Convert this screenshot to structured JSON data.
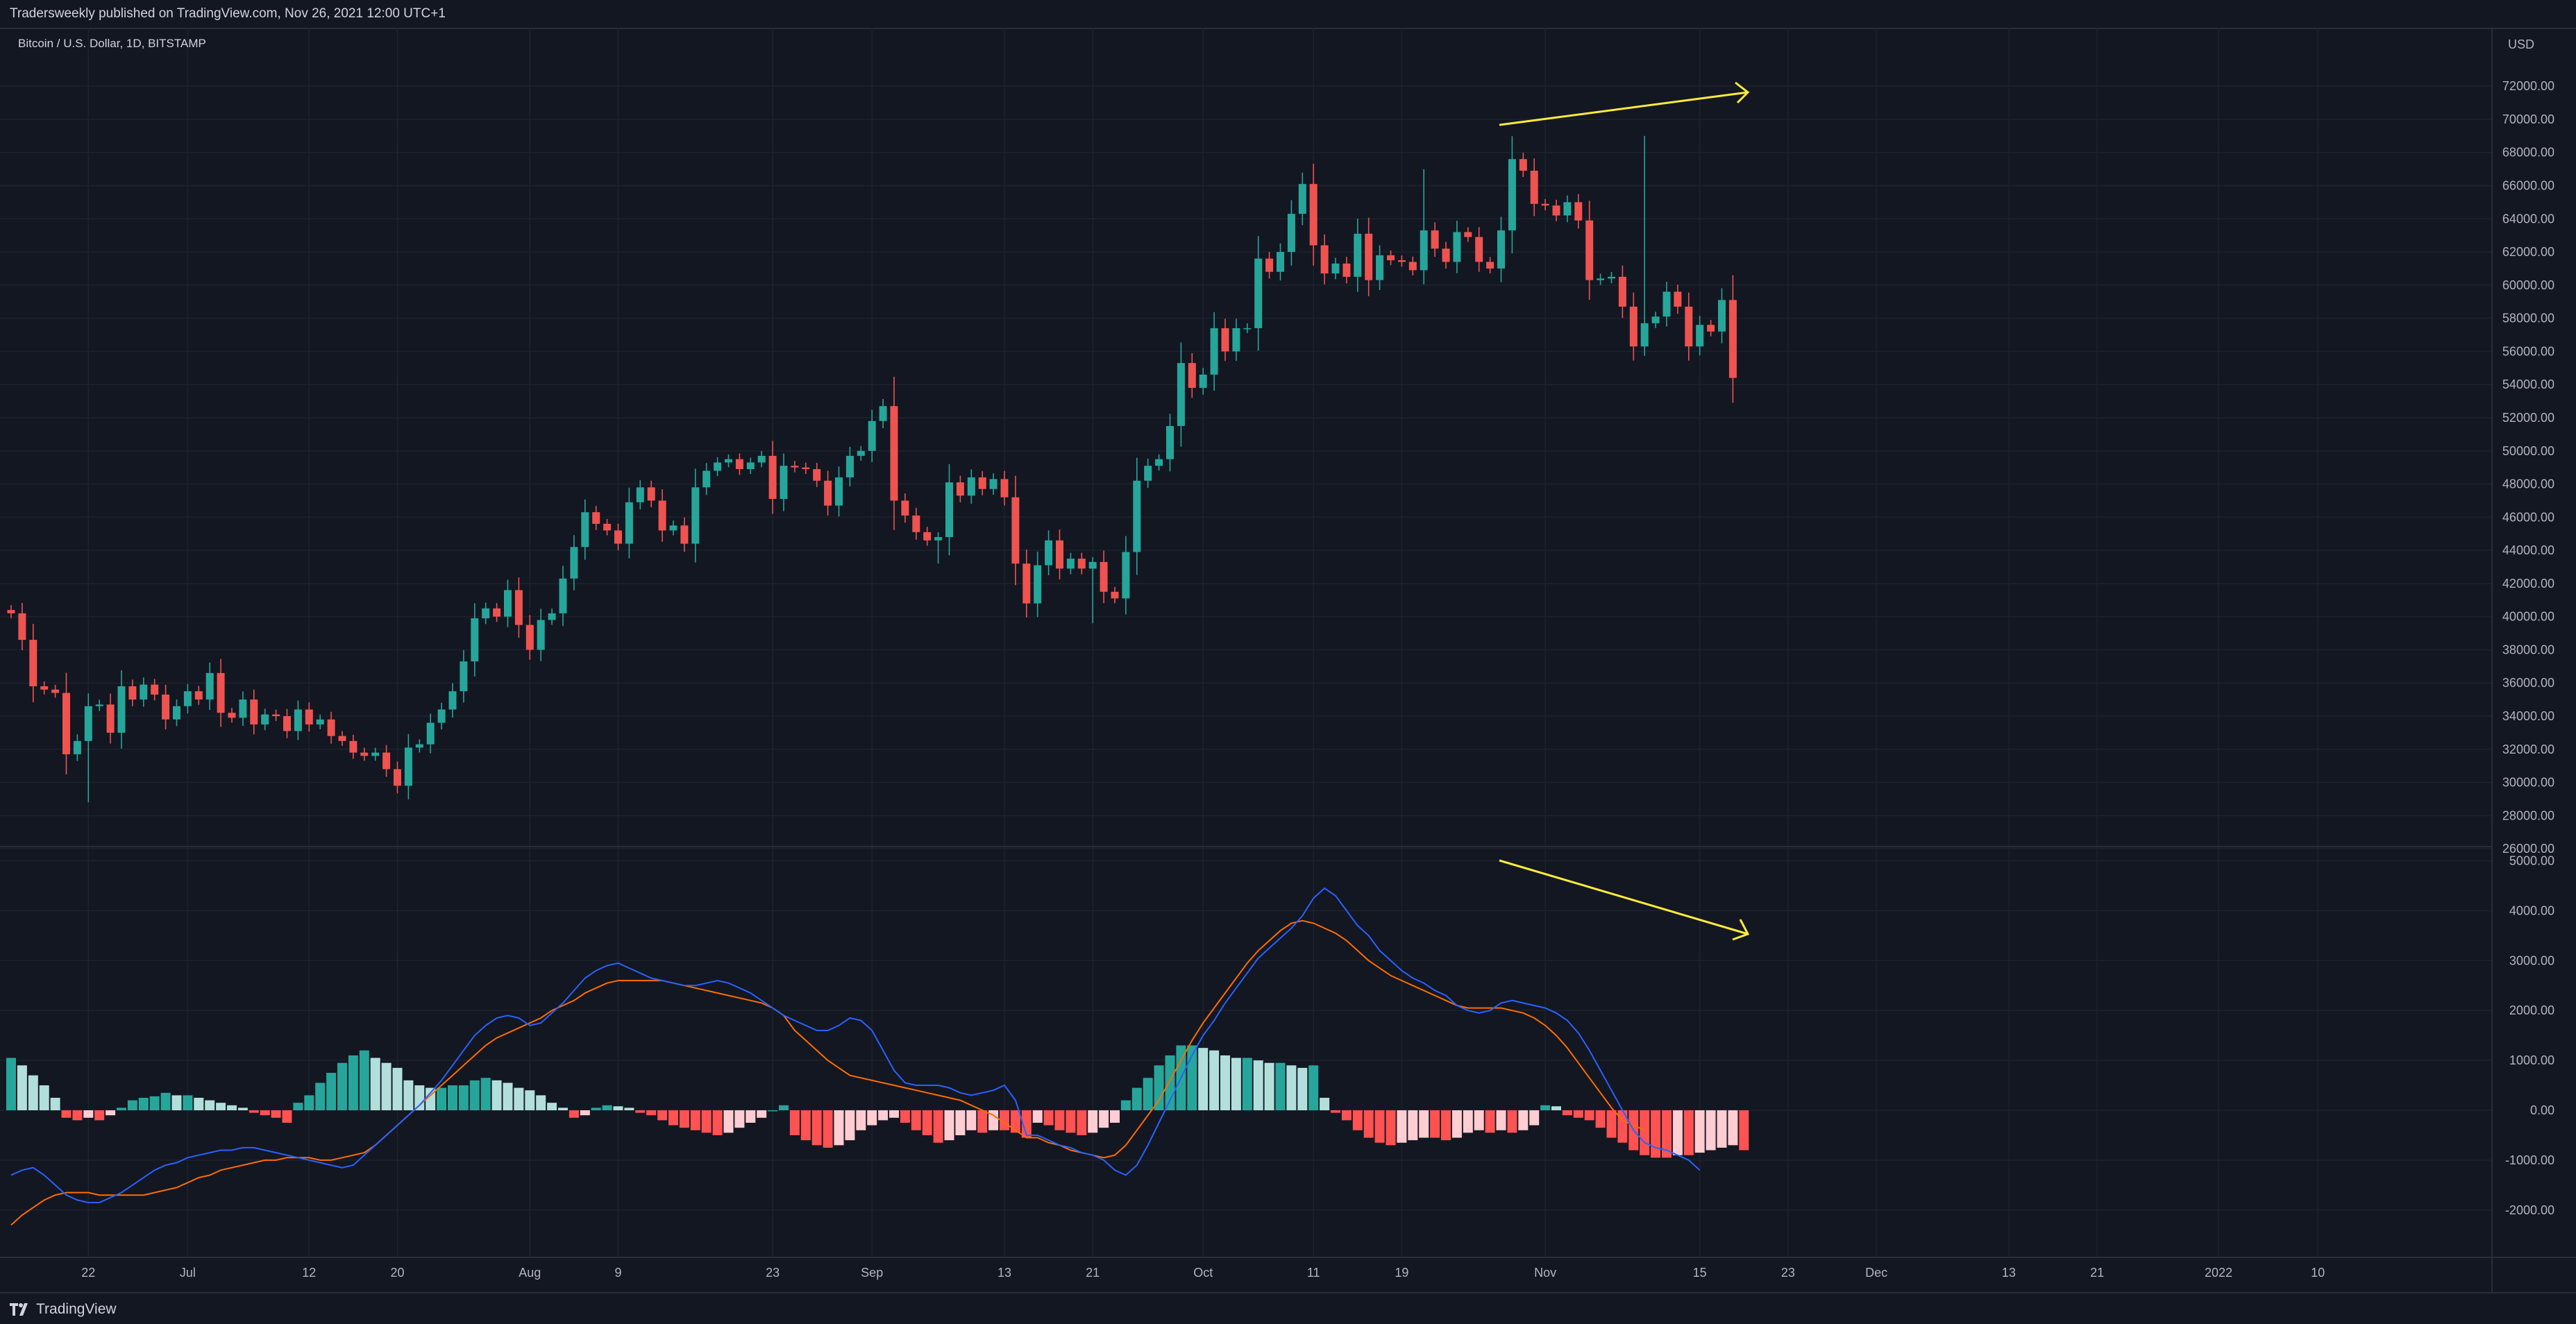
{
  "header": {
    "publish_text": "Tradersweekly published on TradingView.com, Nov 26, 2021 12:00 UTC+1"
  },
  "footer": {
    "brand": "TradingView"
  },
  "colors": {
    "background": "#131722",
    "grid": "#1e222d",
    "up": "#26a69a",
    "down": "#ef5350",
    "hist_up_strong": "#26a69a",
    "hist_up_weak": "#b2dfdb",
    "hist_down_strong": "#ff5252",
    "hist_down_weak": "#ffcdd2",
    "macd_line": "#2962ff",
    "signal_line": "#ff6d00",
    "annotation": "#ffeb3b"
  },
  "chart_data": [
    {
      "type": "candlestick",
      "title": "Bitcoin / U.S. Dollar, 1D, BITSTAMP",
      "ylabel": "USD",
      "ylim": [
        25000,
        72500
      ],
      "y_ticks": [
        "72000.00",
        "70000.00",
        "68000.00",
        "66000.00",
        "64000.00",
        "62000.00",
        "60000.00",
        "58000.00",
        "56000.00",
        "54000.00",
        "52000.00",
        "50000.00",
        "48000.00",
        "46000.00",
        "44000.00",
        "42000.00",
        "40000.00",
        "38000.00",
        "36000.00",
        "34000.00",
        "32000.00",
        "30000.00",
        "28000.00",
        "26000.00"
      ],
      "x_start": "2021-06-15",
      "x_ticks": [
        {
          "date": "2021-06-22",
          "label": "22"
        },
        {
          "date": "2021-07-01",
          "label": "Jul"
        },
        {
          "date": "2021-07-12",
          "label": "12"
        },
        {
          "date": "2021-07-20",
          "label": "20"
        },
        {
          "date": "2021-08-01",
          "label": "Aug"
        },
        {
          "date": "2021-08-09",
          "label": "9"
        },
        {
          "date": "2021-08-23",
          "label": "23"
        },
        {
          "date": "2021-09-01",
          "label": "Sep"
        },
        {
          "date": "2021-09-13",
          "label": "13"
        },
        {
          "date": "2021-09-21",
          "label": "21"
        },
        {
          "date": "2021-10-01",
          "label": "Oct"
        },
        {
          "date": "2021-10-11",
          "label": "11"
        },
        {
          "date": "2021-10-19",
          "label": "19"
        },
        {
          "date": "2021-11-01",
          "label": "Nov"
        },
        {
          "date": "2021-11-15",
          "label": "15"
        },
        {
          "date": "2021-11-23",
          "label": "23"
        },
        {
          "date": "2021-12-01",
          "label": "Dec"
        },
        {
          "date": "2021-12-13",
          "label": "13"
        },
        {
          "date": "2021-12-21",
          "label": "21"
        },
        {
          "date": "2022-01-01",
          "label": "2022"
        },
        {
          "date": "2022-01-10",
          "label": "10"
        }
      ],
      "close_start": 40400,
      "closes": [
        40200,
        38600,
        35800,
        35600,
        35400,
        31700,
        32500,
        34600,
        34700,
        33000,
        35800,
        35000,
        35900,
        35300,
        33800,
        34600,
        35500,
        35000,
        36600,
        34200,
        33900,
        35000,
        33500,
        34100,
        34000,
        33100,
        34400,
        33500,
        33800,
        32800,
        32500,
        31800,
        31600,
        31800,
        30800,
        29800,
        32100,
        32300,
        33600,
        34400,
        35500,
        37300,
        39900,
        40500,
        40000,
        41600,
        39500,
        38000,
        39800,
        40200,
        42300,
        44200,
        46300,
        45600,
        45200,
        44400,
        46900,
        47800,
        47000,
        45200,
        45500,
        44400,
        47800,
        48800,
        49300,
        49500,
        48900,
        49300,
        49700,
        47100,
        49100,
        49000,
        48900,
        48200,
        46700,
        48400,
        49700,
        50000,
        51800,
        52700,
        47000,
        46100,
        45100,
        44600,
        44800,
        48100,
        47300,
        48400,
        47700,
        48300,
        47200,
        43200,
        40800,
        43100,
        44600,
        42900,
        43500,
        42900,
        43300,
        41500,
        41100,
        43900,
        48200,
        49100,
        49500,
        51500,
        55300,
        53800,
        54600,
        57400,
        56000,
        57400,
        57400,
        61600,
        60800,
        62000,
        64300,
        66100,
        62400,
        60700,
        61300,
        60500,
        63100,
        60300,
        61800,
        61500,
        61400,
        60900,
        63300,
        62200,
        61400,
        63200,
        62900,
        61400,
        61000,
        63300,
        67600,
        66900,
        64900,
        64800,
        64200,
        65000,
        63900,
        60300,
        60400,
        60500,
        58700,
        56300,
        57700,
        58100,
        59600,
        58700,
        56300,
        57600,
        57200,
        59100,
        54400
      ],
      "wick_extremes": [
        {
          "date": "2021-06-22",
          "low": 28800
        },
        {
          "date": "2021-09-07",
          "low": 43200
        },
        {
          "date": "2021-09-21",
          "low": 39600
        },
        {
          "date": "2021-10-21",
          "high": 67000
        },
        {
          "date": "2021-11-10",
          "high": 69000
        },
        {
          "date": "2021-11-26",
          "low": 53800
        }
      ]
    },
    {
      "type": "macd",
      "ylim": [
        -2750,
        5300
      ],
      "y_ticks": [
        "5000.00",
        "4000.00",
        "3000.00",
        "2000.00",
        "1000.00",
        "0.00",
        "-1000.00",
        "-2000.00"
      ],
      "histogram": [
        1050,
        900,
        700,
        500,
        250,
        -150,
        -200,
        -150,
        -200,
        -100,
        50,
        200,
        250,
        280,
        350,
        300,
        300,
        250,
        200,
        150,
        100,
        50,
        -50,
        -100,
        -150,
        -250,
        150,
        300,
        550,
        750,
        950,
        1100,
        1200,
        1050,
        950,
        850,
        600,
        500,
        450,
        450,
        500,
        500,
        600,
        650,
        600,
        550,
        450,
        400,
        300,
        150,
        50,
        -150,
        -100,
        50,
        100,
        80,
        50,
        -50,
        -100,
        -200,
        -300,
        -350,
        -400,
        -450,
        -500,
        -450,
        -350,
        -250,
        -150,
        0,
        100,
        -500,
        -600,
        -700,
        -750,
        -700,
        -600,
        -400,
        -300,
        -200,
        -150,
        -250,
        -400,
        -500,
        -650,
        -600,
        -500,
        -400,
        -450,
        -400,
        -400,
        -450,
        -550,
        -250,
        -300,
        -400,
        -450,
        -500,
        -450,
        -350,
        -250,
        200,
        450,
        650,
        900,
        1100,
        1300,
        1300,
        1250,
        1200,
        1100,
        1050,
        1050,
        1000,
        950,
        950,
        900,
        850,
        900,
        250,
        -50,
        -200,
        -400,
        -550,
        -650,
        -700,
        -650,
        -600,
        -550,
        -550,
        -600,
        -550,
        -450,
        -400,
        -450,
        -400,
        -450,
        -400,
        -300,
        100,
        80,
        -100,
        -150,
        -200,
        -350,
        -550,
        -650,
        -800,
        -900,
        -950,
        -950,
        -900,
        -900,
        -850,
        -800,
        -750,
        -700,
        -800
      ],
      "macd": [
        -1300,
        -1200,
        -1150,
        -1300,
        -1500,
        -1700,
        -1800,
        -1850,
        -1850,
        -1750,
        -1650,
        -1500,
        -1350,
        -1200,
        -1100,
        -1050,
        -950,
        -900,
        -850,
        -800,
        -800,
        -750,
        -750,
        -800,
        -850,
        -900,
        -950,
        -1000,
        -1050,
        -1100,
        -1150,
        -1100,
        -900,
        -700,
        -500,
        -300,
        -100,
        100,
        350,
        600,
        900,
        1200,
        1500,
        1700,
        1850,
        1900,
        1850,
        1700,
        1750,
        1950,
        2150,
        2400,
        2650,
        2800,
        2900,
        2950,
        2850,
        2750,
        2650,
        2600,
        2550,
        2500,
        2500,
        2550,
        2600,
        2550,
        2450,
        2350,
        2200,
        2050,
        1900,
        1800,
        1700,
        1600,
        1600,
        1700,
        1850,
        1800,
        1600,
        1200,
        800,
        550,
        500,
        500,
        500,
        450,
        350,
        300,
        350,
        400,
        500,
        200,
        -500,
        -500,
        -600,
        -700,
        -750,
        -850,
        -900,
        -1000,
        -1200,
        -1300,
        -1100,
        -700,
        -250,
        200,
        650,
        1100,
        1500,
        1800,
        2150,
        2450,
        2750,
        3050,
        3250,
        3450,
        3650,
        3900,
        4250,
        4450,
        4300,
        4000,
        3700,
        3500,
        3200,
        3000,
        2800,
        2650,
        2550,
        2400,
        2300,
        2100,
        2000,
        1950,
        2000,
        2150,
        2200,
        2150,
        2100,
        2050,
        1950,
        1800,
        1550,
        1200,
        800,
        400,
        0,
        -400,
        -650,
        -750,
        -800,
        -900,
        -1000,
        -1200
      ],
      "signal": [
        -2300,
        -2100,
        -1950,
        -1800,
        -1700,
        -1650,
        -1650,
        -1650,
        -1700,
        -1700,
        -1700,
        -1700,
        -1700,
        -1650,
        -1600,
        -1550,
        -1450,
        -1350,
        -1300,
        -1200,
        -1150,
        -1100,
        -1050,
        -1000,
        -1000,
        -950,
        -950,
        -950,
        -1000,
        -1000,
        -950,
        -900,
        -850,
        -700,
        -500,
        -300,
        -100,
        100,
        300,
        500,
        700,
        900,
        1100,
        1300,
        1450,
        1550,
        1650,
        1750,
        1850,
        2000,
        2100,
        2200,
        2350,
        2450,
        2550,
        2600,
        2600,
        2600,
        2600,
        2600,
        2550,
        2500,
        2450,
        2400,
        2350,
        2300,
        2250,
        2200,
        2150,
        2050,
        1900,
        1600,
        1400,
        1200,
        1000,
        850,
        700,
        650,
        600,
        550,
        500,
        450,
        400,
        350,
        300,
        250,
        200,
        100,
        0,
        -100,
        -250,
        -400,
        -550,
        -550,
        -650,
        -700,
        -800,
        -850,
        -900,
        -950,
        -900,
        -700,
        -400,
        -100,
        200,
        600,
        1000,
        1400,
        1750,
        2050,
        2350,
        2650,
        2950,
        3200,
        3400,
        3600,
        3750,
        3800,
        3750,
        3650,
        3550,
        3400,
        3200,
        3000,
        2850,
        2700,
        2600,
        2500,
        2400,
        2300,
        2200,
        2100,
        2050,
        2050,
        2050,
        2050,
        2000,
        1950,
        1850,
        1700,
        1500,
        1250,
        950,
        650,
        350,
        50,
        -200,
        -300,
        -400
      ],
      "annotation_note": "diverging trend arrows (price higher highs vs MACD lower highs)"
    }
  ]
}
